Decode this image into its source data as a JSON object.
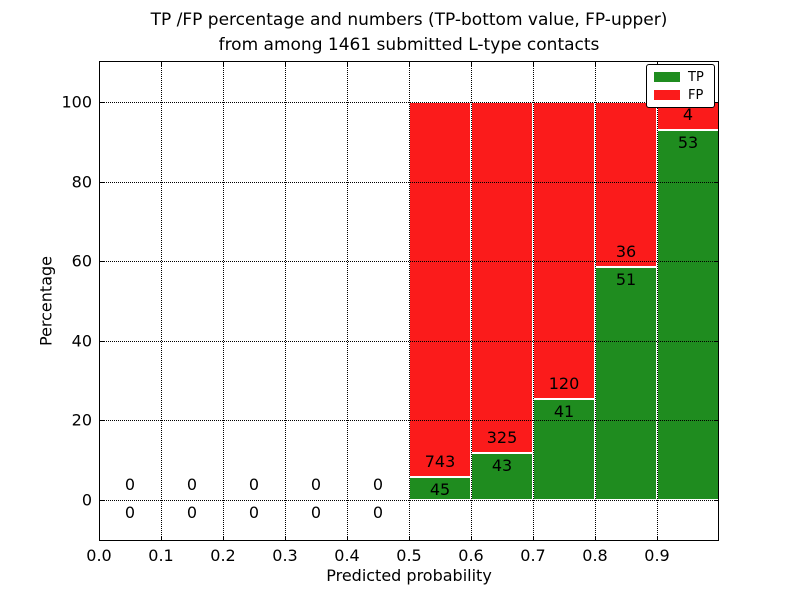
{
  "chart_data": {
    "type": "bar",
    "stacked": true,
    "title_lines": [
      "TP /FP percentage and numbers (TP-bottom value, FP-upper)",
      "from among 1461 submitted L-type contacts"
    ],
    "xlabel": "Predicted probability",
    "ylabel": "Percentage",
    "xlim": [
      0.0,
      1.0
    ],
    "ylim": [
      -10.3,
      110.3
    ],
    "x_ticks": [
      0.0,
      0.1,
      0.2,
      0.3,
      0.4,
      0.5,
      0.6,
      0.7,
      0.8,
      0.9
    ],
    "x_tick_labels": [
      "0.0",
      "0.1",
      "0.2",
      "0.3",
      "0.4",
      "0.5",
      "0.6",
      "0.7",
      "0.8",
      "0.9"
    ],
    "y_ticks": [
      0,
      20,
      40,
      60,
      80,
      100
    ],
    "y_tick_labels": [
      "0",
      "20",
      "40",
      "60",
      "80",
      "100"
    ],
    "grid_style": "dotted",
    "bin_width": 0.1,
    "bin_starts": [
      0.0,
      0.1,
      0.2,
      0.3,
      0.4,
      0.5,
      0.6,
      0.7,
      0.8,
      0.9
    ],
    "series": [
      {
        "name": "TP",
        "color": "#1f8c1f",
        "counts": [
          0,
          0,
          0,
          0,
          0,
          45,
          43,
          41,
          51,
          53
        ]
      },
      {
        "name": "FP",
        "color": "#fb1b1b",
        "counts": [
          0,
          0,
          0,
          0,
          0,
          743,
          325,
          120,
          36,
          4
        ]
      }
    ],
    "tp_percent_by_bin": [
      0,
      0,
      0,
      0,
      0,
      5.7,
      11.7,
      25.5,
      58.6,
      93.0
    ],
    "bar_edge_color": "#ffffff",
    "legend": {
      "position": "upper-right",
      "entries": [
        "TP",
        "FP"
      ]
    }
  }
}
